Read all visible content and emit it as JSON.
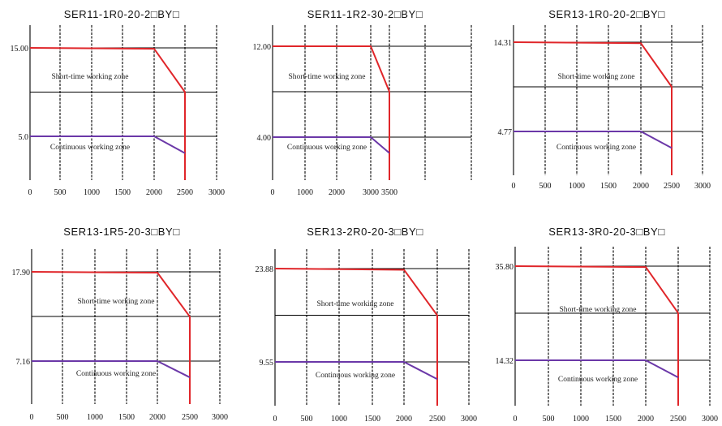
{
  "colors": {
    "short_time": "#e0262a",
    "continuous": "#6b38a8",
    "grid": "#000000"
  },
  "chart_data": [
    {
      "type": "line",
      "title": "SER11-1R0-20-2□BY□",
      "x_ticks": [
        "0",
        "500",
        "1000",
        "1500",
        "2000",
        "2500",
        "3000"
      ],
      "y_ticks": [
        "15.00",
        "5.0"
      ],
      "zone_labels": {
        "short_time": "Short-time working zone",
        "continuous": "Continuous working zone"
      },
      "xlim": [
        0,
        3000
      ],
      "grid": true,
      "series": [
        {
          "role": "short_time",
          "x": [
            0,
            2000,
            2500,
            2500
          ],
          "y": [
            15.0,
            14.9,
            10.0,
            0
          ]
        },
        {
          "role": "continuous",
          "x": [
            0,
            2000,
            2500
          ],
          "y": [
            5.0,
            5.0,
            3.1
          ]
        }
      ]
    },
    {
      "type": "line",
      "title": "SER11-1R2-30-2□BY□",
      "x_ticks": [
        "0",
        "1000",
        "2000",
        "3000",
        "3500"
      ],
      "y_ticks": [
        "12.00",
        "4.00"
      ],
      "zone_labels": {
        "short_time": "Short-time working zone",
        "continuous": "Continuous working zone"
      },
      "xlim": [
        0,
        5000
      ],
      "grid": true,
      "series": [
        {
          "role": "short_time",
          "x": [
            0,
            3000,
            3500,
            3500
          ],
          "y": [
            12.0,
            12.0,
            8.0,
            0
          ]
        },
        {
          "role": "continuous",
          "x": [
            0,
            3000,
            3500
          ],
          "y": [
            4.0,
            4.0,
            2.6
          ]
        }
      ]
    },
    {
      "type": "line",
      "title": "SER13-1R0-20-2□BY□",
      "x_ticks": [
        "0",
        "500",
        "1000",
        "1500",
        "2000",
        "2500",
        "3000"
      ],
      "y_ticks": [
        "14.31",
        "4.77"
      ],
      "zone_labels": {
        "short_time": "Short-time working zone",
        "continuous": "Continuous working zone"
      },
      "xlim": [
        0,
        3000
      ],
      "grid": true,
      "series": [
        {
          "role": "short_time",
          "x": [
            0,
            2000,
            2500,
            2500
          ],
          "y": [
            14.31,
            14.2,
            9.54,
            0
          ]
        },
        {
          "role": "continuous",
          "x": [
            0,
            2000,
            2500
          ],
          "y": [
            4.77,
            4.77,
            3.0
          ]
        }
      ]
    },
    {
      "type": "line",
      "title": "SER13-1R5-20-3□BY□",
      "x_ticks": [
        "0",
        "500",
        "1000",
        "1500",
        "2000",
        "2500",
        "3000"
      ],
      "y_ticks": [
        "17.90",
        "7.16"
      ],
      "zone_labels": {
        "short_time": "Short-time working zone",
        "continuous": "Continuous working zone"
      },
      "xlim": [
        0,
        3000
      ],
      "grid": true,
      "series": [
        {
          "role": "short_time",
          "x": [
            0,
            2000,
            2500,
            2500
          ],
          "y": [
            17.9,
            17.8,
            12.5,
            0
          ]
        },
        {
          "role": "continuous",
          "x": [
            0,
            2000,
            2500
          ],
          "y": [
            7.16,
            7.16,
            5.2
          ]
        }
      ]
    },
    {
      "type": "line",
      "title": "SER13-2R0-20-3□BY□",
      "x_ticks": [
        "0",
        "500",
        "1000",
        "1500",
        "2000",
        "2500",
        "3000"
      ],
      "y_ticks": [
        "23.88",
        "9.55"
      ],
      "zone_labels": {
        "short_time": "Short-time working zone",
        "continuous": "Continuous working zone"
      },
      "xlim": [
        0,
        3000
      ],
      "grid": true,
      "series": [
        {
          "role": "short_time",
          "x": [
            0,
            2000,
            2500,
            2500
          ],
          "y": [
            23.88,
            23.7,
            16.7,
            0
          ]
        },
        {
          "role": "continuous",
          "x": [
            0,
            2000,
            2500
          ],
          "y": [
            9.55,
            9.55,
            6.9
          ]
        }
      ]
    },
    {
      "type": "line",
      "title": "SER13-3R0-20-3□BY□",
      "x_ticks": [
        "0",
        "500",
        "1000",
        "1500",
        "2000",
        "2500",
        "3000"
      ],
      "y_ticks": [
        "35.80",
        "14.32"
      ],
      "zone_labels": {
        "short_time": "Short-time working zone",
        "continuous": "Continuous working zone"
      },
      "xlim": [
        0,
        3000
      ],
      "grid": true,
      "series": [
        {
          "role": "short_time",
          "x": [
            0,
            2000,
            2500,
            2500
          ],
          "y": [
            35.8,
            35.6,
            25.1,
            0
          ]
        },
        {
          "role": "continuous",
          "x": [
            0,
            2000,
            2500
          ],
          "y": [
            14.32,
            14.32,
            10.4
          ]
        }
      ]
    }
  ]
}
